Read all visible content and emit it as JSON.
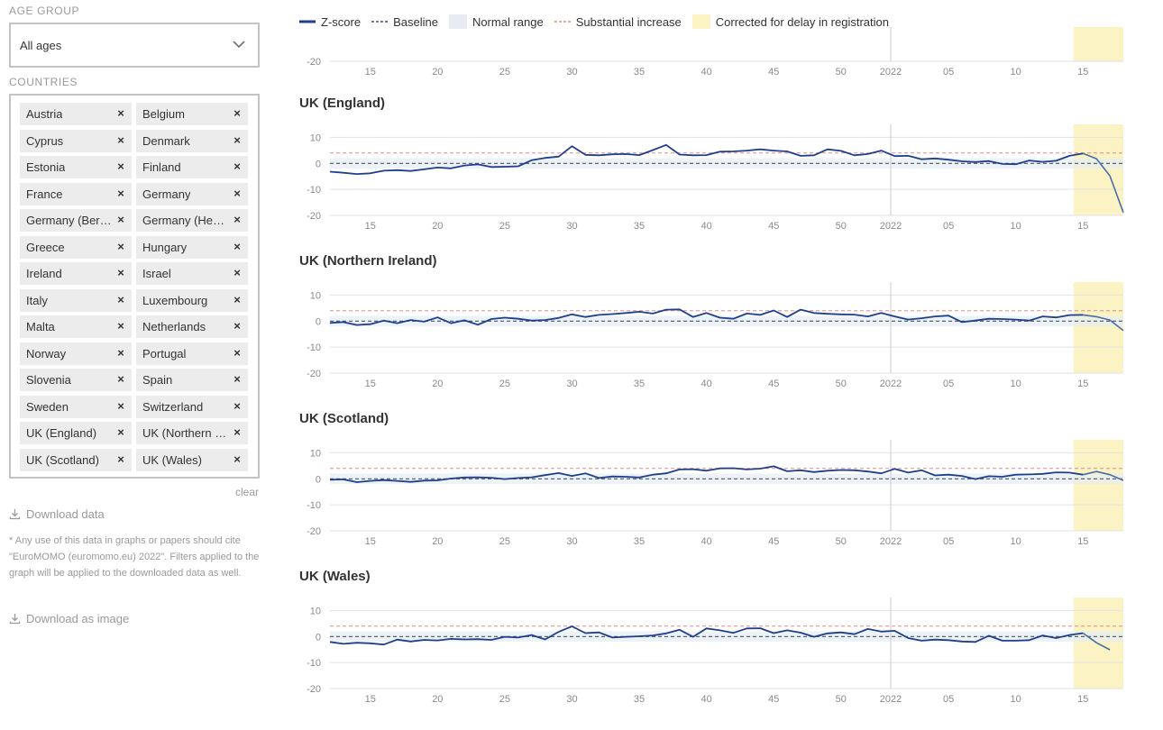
{
  "sidebar": {
    "age_group_label": "AGE GROUP",
    "age_group_value": "All ages",
    "countries_label": "COUNTRIES",
    "countries": [
      "Austria",
      "Belgium",
      "Cyprus",
      "Denmark",
      "Estonia",
      "Finland",
      "France",
      "Germany",
      "Germany (Berlin)",
      "Germany (Hesse)",
      "Greece",
      "Hungary",
      "Ireland",
      "Israel",
      "Italy",
      "Luxembourg",
      "Malta",
      "Netherlands",
      "Norway",
      "Portugal",
      "Slovenia",
      "Spain",
      "Sweden",
      "Switzerland",
      "UK (England)",
      "UK (Northern Ireland)",
      "UK (Scotland)",
      "UK (Wales)"
    ],
    "remove_glyph": "×",
    "clear_label": "clear",
    "download_data_label": "Download data",
    "note": "* Any use of this data in graphs or papers should cite \"EuroMOMO (euromomo.eu) 2022\". Filters applied to the graph will be applied to the downloaded data as well.",
    "download_image_label": "Download as image"
  },
  "legend": {
    "zscore": "Z-score",
    "baseline": "Baseline",
    "normal_range": "Normal range",
    "substantial_increase": "Substantial increase",
    "corrected": "Corrected for delay in registration"
  },
  "colors": {
    "zscore_line": "#1f3f8c",
    "zscore_corrected": "#4a6fa5",
    "baseline": "#4a5568",
    "normal_range": "#e6ecf2",
    "substantial_increase": "#e28a8a",
    "corrected_band": "#fbf3c4",
    "grid": "#e2e2e2",
    "year_line": "#cccccc",
    "tick_text": "#8a8a8a"
  },
  "chart_data": [
    {
      "type": "line",
      "title": "",
      "partial": true,
      "x_tick_labels": [
        "15",
        "20",
        "25",
        "30",
        "35",
        "40",
        "45",
        "50",
        "2022",
        "05",
        "10",
        "15"
      ],
      "y_ticks_visible": [
        -20
      ],
      "ylim": [
        -20,
        15
      ],
      "baseline": 0,
      "substantial_increase": 4,
      "series": []
    },
    {
      "type": "line",
      "title": "UK (England)",
      "x_tick_labels": [
        "15",
        "20",
        "25",
        "30",
        "35",
        "40",
        "45",
        "50",
        "2022",
        "05",
        "10",
        "15"
      ],
      "y_ticks": [
        10,
        0,
        -10,
        -20
      ],
      "ylim": [
        -20,
        15
      ],
      "baseline": 0,
      "substantial_increase": 4,
      "corrected_from_index": 61,
      "series": [
        {
          "values": [
            -3.2,
            -3.6,
            -4.1,
            -3.8,
            -2.8,
            -2.6,
            -2.9,
            -2.3,
            -1.6,
            -1.9,
            -0.8,
            -0.4,
            -1.4,
            -1.3,
            -1.1,
            1.2,
            2.1,
            2.6,
            6.6,
            3.3,
            3.1,
            3.5,
            3.6,
            3.2,
            5.1,
            7.1,
            3.4,
            3.1,
            3.2,
            4.5,
            4.6,
            4.9,
            5.4,
            4.9,
            4.6,
            2.9,
            3.1,
            5.4,
            4.8,
            3.1,
            3.6,
            4.9,
            2.8,
            2.9,
            1.6,
            1.9,
            1.4,
            0.8,
            0.5,
            0.9,
            -0.2,
            -0.3,
            1.1,
            0.6,
            1.0,
            2.9,
            3.8,
            1.8,
            -4.8,
            -18.9
          ]
        }
      ]
    },
    {
      "type": "line",
      "title": "UK (Northern Ireland)",
      "x_tick_labels": [
        "15",
        "20",
        "25",
        "30",
        "35",
        "40",
        "45",
        "50",
        "2022",
        "05",
        "10",
        "15"
      ],
      "y_ticks": [
        10,
        0,
        -10,
        -20
      ],
      "ylim": [
        -20,
        15
      ],
      "baseline": 0,
      "substantial_increase": 4,
      "series": [
        {
          "values": [
            -0.7,
            -0.4,
            -1.5,
            -1.2,
            0.2,
            -0.8,
            0.4,
            -0.2,
            1.4,
            -0.8,
            0.3,
            -1.4,
            0.8,
            1.3,
            0.9,
            0.2,
            0.4,
            1.2,
            2.6,
            1.6,
            2.4,
            2.7,
            3.1,
            3.6,
            2.9,
            4.4,
            4.5,
            1.6,
            3.1,
            1.3,
            0.9,
            2.9,
            2.4,
            4.1,
            1.6,
            4.4,
            3.1,
            2.8,
            2.6,
            2.5,
            1.8,
            3.1,
            1.8,
            0.6,
            1.1,
            1.8,
            2.1,
            -0.4,
            0.2,
            0.9,
            0.8,
            0.6,
            0.2,
            1.8,
            1.4,
            2.3,
            2.4,
            1.7,
            0.4,
            -3.6
          ]
        }
      ]
    },
    {
      "type": "line",
      "title": "UK (Scotland)",
      "x_tick_labels": [
        "15",
        "20",
        "25",
        "30",
        "35",
        "40",
        "45",
        "50",
        "2022",
        "05",
        "10",
        "15"
      ],
      "y_ticks": [
        10,
        0,
        -10,
        -20
      ],
      "ylim": [
        -20,
        15
      ],
      "baseline": 0,
      "substantial_increase": 4,
      "series": [
        {
          "values": [
            -0.4,
            -0.2,
            -1.3,
            -0.8,
            -0.5,
            -0.8,
            -1.2,
            -0.7,
            -0.6,
            0.1,
            0.5,
            0.6,
            0.4,
            -0.1,
            0.3,
            0.6,
            1.4,
            2.2,
            1.1,
            2.1,
            0.3,
            0.9,
            0.8,
            0.5,
            1.6,
            2.1,
            3.6,
            3.7,
            3.1,
            4.0,
            4.1,
            3.6,
            3.9,
            4.8,
            2.9,
            3.3,
            2.6,
            3.1,
            3.4,
            3.3,
            2.8,
            2.1,
            3.8,
            2.4,
            3.3,
            1.3,
            1.6,
            1.1,
            -0.1,
            1.0,
            0.8,
            1.6,
            1.7,
            1.9,
            2.5,
            2.4,
            1.6,
            2.8,
            1.6,
            -0.6
          ]
        }
      ]
    },
    {
      "type": "line",
      "title": "UK (Wales)",
      "x_tick_labels": [
        "15",
        "20",
        "25",
        "30",
        "35",
        "40",
        "45",
        "50",
        "2022",
        "05",
        "10",
        "15"
      ],
      "y_ticks": [
        10,
        0,
        -10,
        -20
      ],
      "ylim": [
        -20,
        15
      ],
      "baseline": 0,
      "substantial_increase": 4,
      "series": [
        {
          "values": [
            -2.1,
            -2.8,
            -2.4,
            -2.6,
            -3.1,
            -1.2,
            -1.9,
            -1.3,
            -1.5,
            -0.9,
            -1.1,
            -1.0,
            -1.3,
            -0.1,
            -0.4,
            0.6,
            -1.1,
            1.8,
            3.9,
            1.3,
            1.6,
            -0.4,
            -0.1,
            0.1,
            0.4,
            1.2,
            2.6,
            -0.1,
            3.1,
            2.4,
            1.4,
            3.1,
            3.2,
            1.3,
            2.4,
            1.5,
            -0.1,
            1.2,
            1.6,
            0.9,
            2.9,
            1.9,
            2.2,
            -0.6,
            -1.6,
            -1.2,
            -1.4,
            -1.9,
            -2.1,
            0.3,
            -1.6,
            -1.6,
            -1.4,
            0.4,
            -0.6,
            0.6,
            1.3,
            -2.4,
            -5.1
          ]
        }
      ]
    }
  ]
}
